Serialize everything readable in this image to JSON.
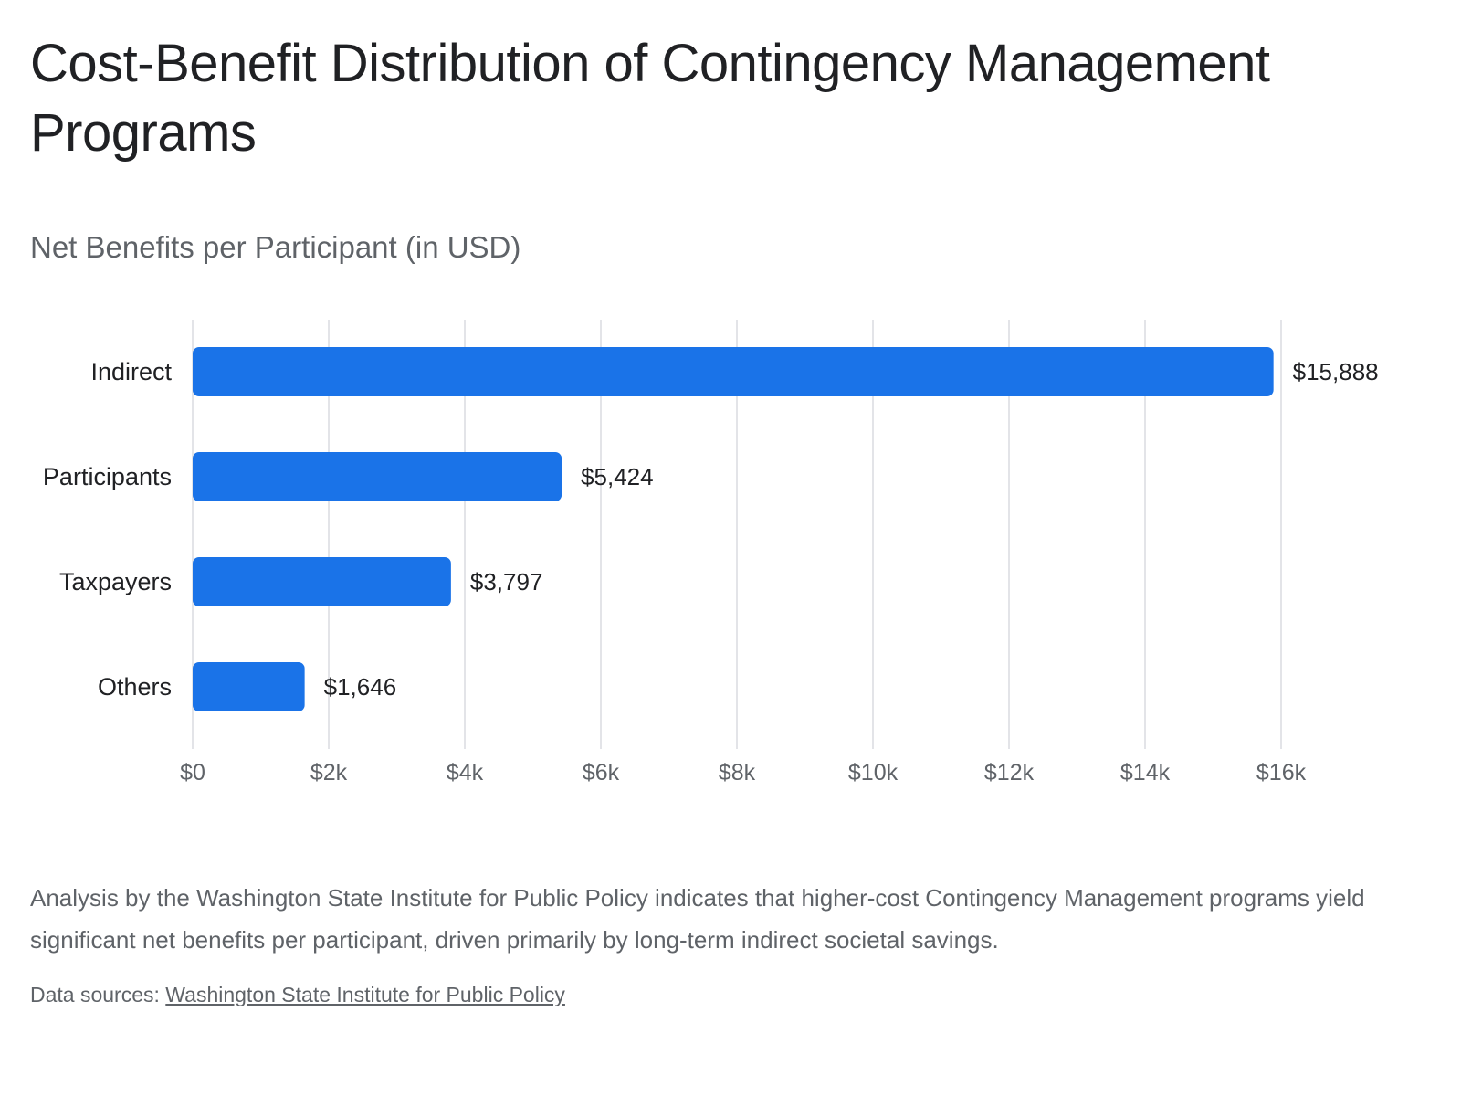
{
  "title": "Cost-Benefit Distribution of Contingency Management Programs",
  "subtitle": "Net Benefits per Participant (in USD)",
  "description": "Analysis by the Washington State Institute for Public Policy indicates that higher-cost Contingency Management programs yield significant net benefits per participant, driven primarily by long-term indirect societal savings.",
  "sources": {
    "prefix": "Data sources: ",
    "link_text": "Washington State Institute for Public Policy"
  },
  "colors": {
    "bar": "#1a73e8",
    "grid": "#dadce0"
  },
  "chart_data": {
    "type": "bar",
    "orientation": "horizontal",
    "categories": [
      "Indirect",
      "Participants",
      "Taxpayers",
      "Others"
    ],
    "values": [
      15888,
      5424,
      3797,
      1646
    ],
    "value_labels": [
      "$15,888",
      "$5,424",
      "$3,797",
      "$1,646"
    ],
    "xlim": [
      0,
      16000
    ],
    "ticks": [
      0,
      2000,
      4000,
      6000,
      8000,
      10000,
      12000,
      14000,
      16000
    ],
    "tick_labels": [
      "$0",
      "$2k",
      "$4k",
      "$6k",
      "$8k",
      "$10k",
      "$12k",
      "$14k",
      "$16k"
    ],
    "grid": true,
    "legend": "none"
  }
}
